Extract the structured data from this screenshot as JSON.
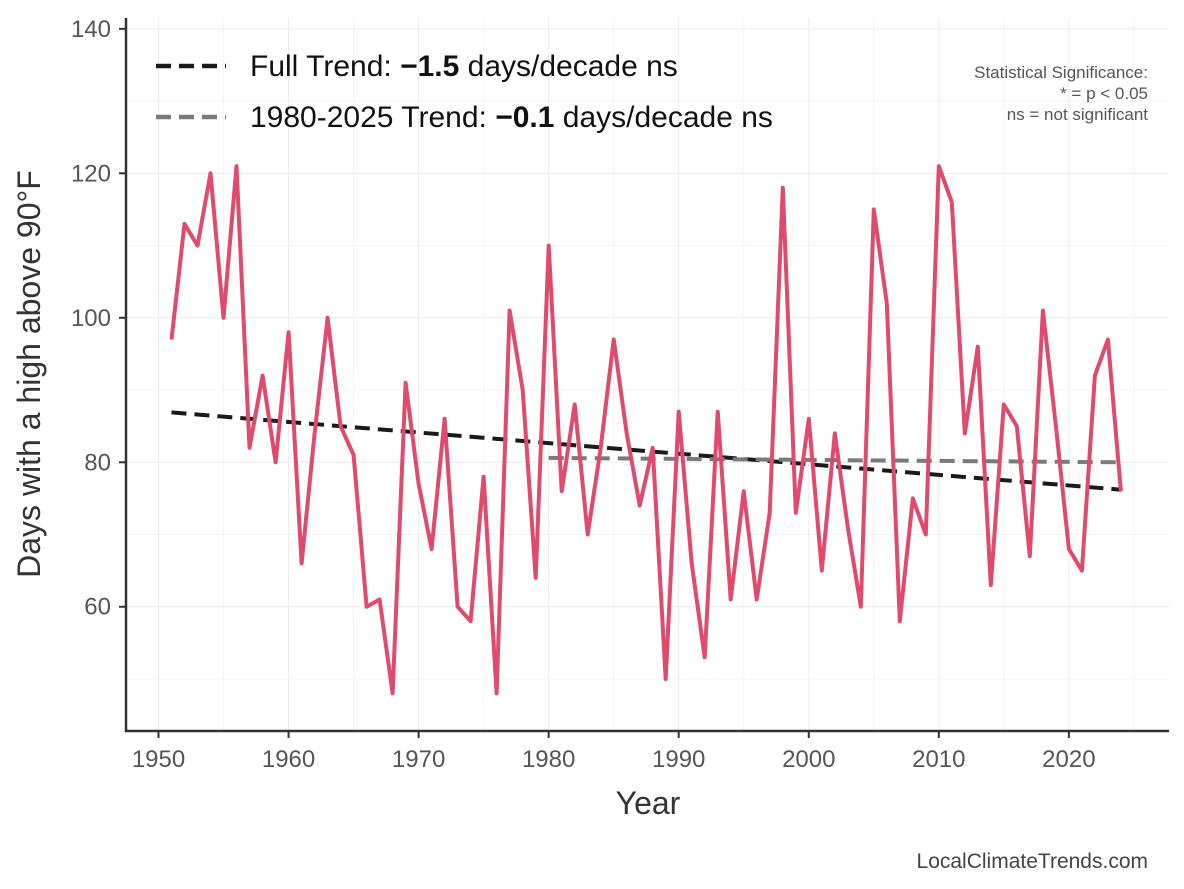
{
  "chart_data": {
    "type": "line",
    "xlabel": "Year",
    "ylabel": "Days with a high above 90°F",
    "xlim": [
      1947.5,
      2027.7
    ],
    "ylim": [
      42.8,
      141.5
    ],
    "x_ticks": [
      1950,
      1960,
      1970,
      1980,
      1990,
      2000,
      2010,
      2020
    ],
    "y_ticks": [
      60,
      80,
      100,
      120,
      140
    ],
    "grid": true,
    "legend_position": "top-left",
    "colors": {
      "series": "#e04a6c",
      "full_trend": "#1a1a1a",
      "recent_trend": "#7a7a7a"
    },
    "series": [
      {
        "x": [
          1951,
          1952,
          1953,
          1954,
          1955,
          1956,
          1957,
          1958,
          1959,
          1960,
          1961,
          1962,
          1963,
          1964,
          1965,
          1966,
          1967,
          1968,
          1969,
          1970,
          1971,
          1972,
          1973,
          1974,
          1975,
          1976,
          1977,
          1978,
          1979,
          1980,
          1981,
          1982,
          1983,
          1984,
          1985,
          1986,
          1987,
          1988,
          1989,
          1990,
          1991,
          1992,
          1993,
          1994,
          1995,
          1996,
          1997,
          1998,
          1999,
          2000,
          2001,
          2002,
          2003,
          2004,
          2005,
          2006,
          2007,
          2008,
          2009,
          2010,
          2011,
          2012,
          2013,
          2014,
          2015,
          2016,
          2017,
          2018,
          2019,
          2020,
          2021,
          2022,
          2023,
          2024
        ],
        "values": [
          97,
          113,
          110,
          120,
          100,
          121,
          82,
          92,
          80,
          98,
          66,
          84,
          100,
          85,
          81,
          60,
          61,
          48,
          91,
          77,
          68,
          86,
          60,
          58,
          78,
          48,
          101,
          90,
          64,
          110,
          76,
          88,
          70,
          82,
          97,
          84,
          74,
          82,
          50,
          87,
          66,
          53,
          87,
          61,
          76,
          61,
          73,
          118,
          73,
          86,
          65,
          84,
          71,
          60,
          115,
          102,
          58,
          75,
          70,
          121,
          116,
          84,
          96,
          63,
          88,
          85,
          67,
          101,
          85,
          68,
          65,
          92,
          97,
          76
        ]
      }
    ],
    "trends": [
      {
        "label_prefix": "Full Trend: ",
        "value_label": "−1.5",
        "label_suffix": " days/decade ns",
        "x": [
          1951,
          2024
        ],
        "y": [
          86.9,
          76.2
        ]
      },
      {
        "label_prefix": "1980-2025 Trend: ",
        "value_label": "−0.1",
        "label_suffix": " days/decade ns",
        "x": [
          1980,
          2024
        ],
        "y": [
          80.6,
          80.0
        ]
      }
    ],
    "significance_note": [
      "Statistical Significance:",
      "* = p < 0.05",
      "ns = not significant"
    ],
    "source": "LocalClimateTrends.com"
  }
}
